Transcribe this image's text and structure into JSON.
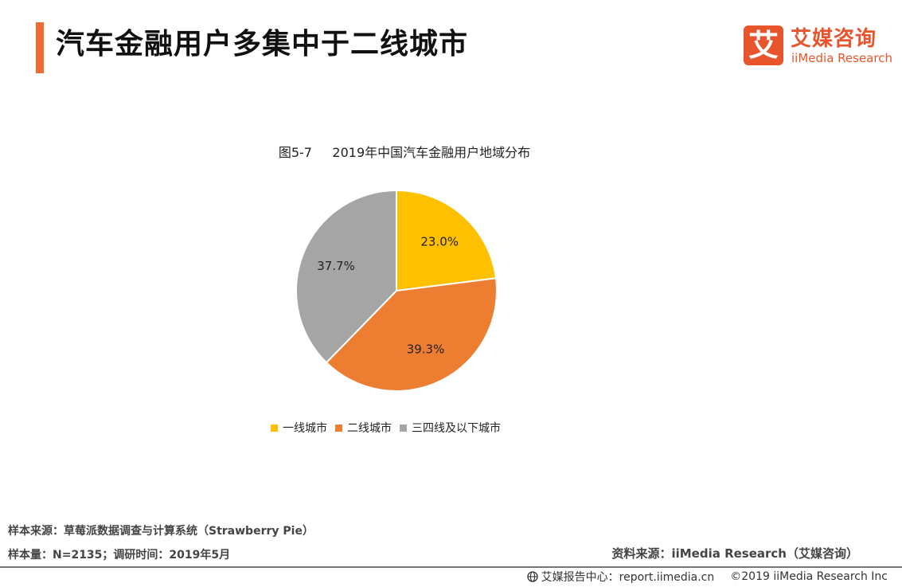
{
  "header": {
    "title": "汽车金融用户多集中于二线城市",
    "accent_color": "#f26a32"
  },
  "logo": {
    "glyph": "艾",
    "name_cn": "艾媒咨询",
    "name_en": "iiMedia Research",
    "color": "#e8552c"
  },
  "chart_data": {
    "type": "pie",
    "title": "图5-7     2019年中国汽车金融用户地域分布",
    "categories": [
      "一线城市",
      "二线城市",
      "三四线及以下城市"
    ],
    "values": [
      23.0,
      39.3,
      37.7
    ],
    "labels": [
      "23.0%",
      "39.3%",
      "37.7%"
    ],
    "colors": [
      "#ffc000",
      "#ed7d31",
      "#a5a5a5"
    ],
    "legend_position": "bottom"
  },
  "sources": {
    "sample_source": "样本来源：草莓派数据调查与计算系统（Strawberry Pie）",
    "sample_size": "样本量：N=2135；调研时间：2019年5月",
    "data_source": "资料来源：iiMedia Research（艾媒咨询）"
  },
  "footer": {
    "globe_icon": "globe-icon",
    "center": "艾媒报告中心：report.iimedia.cn",
    "copyright": "©2019  iiMedia Research  Inc"
  }
}
